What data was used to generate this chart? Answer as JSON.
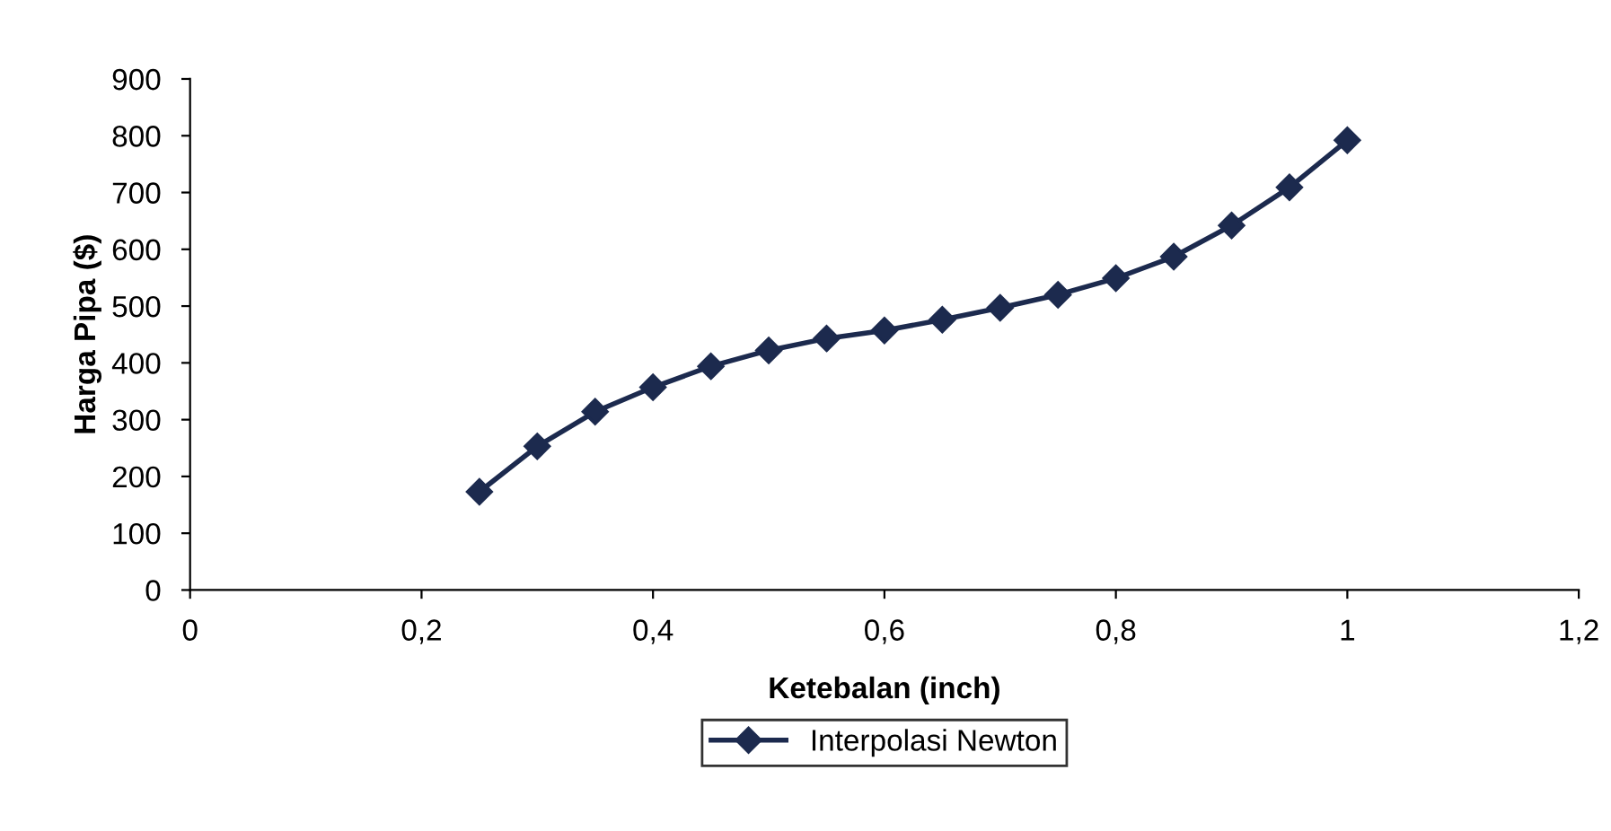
{
  "chart_data": {
    "type": "line",
    "xlabel": "Ketebalan (inch)",
    "ylabel": "Harga Pipa ($)",
    "x": [
      0.25,
      0.3,
      0.35,
      0.4,
      0.45,
      0.5,
      0.55,
      0.6,
      0.65,
      0.7,
      0.75,
      0.8,
      0.85,
      0.9,
      0.95,
      1.0
    ],
    "series": [
      {
        "name": "Interpolasi Newton",
        "color": "#1c2a4e",
        "values": [
          173,
          253,
          314,
          357,
          394,
          422,
          443,
          457,
          476,
          497,
          520,
          549,
          587,
          642,
          709,
          792
        ]
      }
    ],
    "xlim": [
      0,
      1.2
    ],
    "xticks": [
      {
        "value": 0,
        "label": "0"
      },
      {
        "value": 0.2,
        "label": "0,2"
      },
      {
        "value": 0.4,
        "label": "0,4"
      },
      {
        "value": 0.6,
        "label": "0,6"
      },
      {
        "value": 0.8,
        "label": "0,8"
      },
      {
        "value": 1,
        "label": "1"
      },
      {
        "value": 1.2,
        "label": "1,2"
      }
    ],
    "ylim": [
      0,
      900
    ],
    "yticks": [
      0,
      100,
      200,
      300,
      400,
      500,
      600,
      700,
      800,
      900
    ],
    "marker": "diamond",
    "line_style": "solid",
    "grid": false,
    "legend": "bottom"
  }
}
